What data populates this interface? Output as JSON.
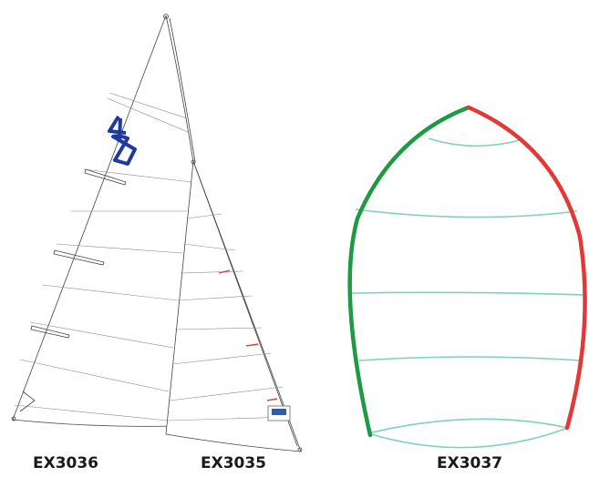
{
  "sails": [
    {
      "code": "EX3036"
    },
    {
      "code": "EX3035"
    },
    {
      "code": "EX3037"
    }
  ]
}
